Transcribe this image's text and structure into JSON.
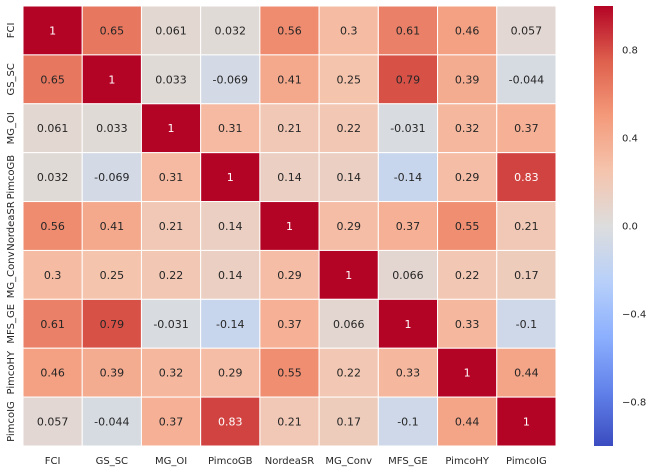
{
  "chart_data": {
    "type": "heatmap",
    "title": "",
    "xlabel": "",
    "ylabel": "",
    "x_labels": [
      "FCI",
      "GS_SC",
      "MG_OI",
      "PimcoGB",
      "NordeaSR",
      "MG_Conv",
      "MFS_GE",
      "PimcoHY",
      "PimcoIG"
    ],
    "y_labels": [
      "FCI",
      "GS_SC",
      "MG_OI",
      "PimcoGB",
      "NordeaSR",
      "MG_Conv",
      "MFS_GE",
      "PimcoHY",
      "PimcoIG"
    ],
    "values": [
      [
        1,
        0.65,
        0.061,
        0.032,
        0.56,
        0.3,
        0.61,
        0.46,
        0.057
      ],
      [
        0.65,
        1,
        0.033,
        -0.069,
        0.41,
        0.25,
        0.79,
        0.39,
        -0.044
      ],
      [
        0.061,
        0.033,
        1,
        0.31,
        0.21,
        0.22,
        -0.031,
        0.32,
        0.37
      ],
      [
        0.032,
        -0.069,
        0.31,
        1,
        0.14,
        0.14,
        -0.14,
        0.29,
        0.83
      ],
      [
        0.56,
        0.41,
        0.21,
        0.14,
        1,
        0.29,
        0.37,
        0.55,
        0.21
      ],
      [
        0.3,
        0.25,
        0.22,
        0.14,
        0.29,
        1,
        0.066,
        0.22,
        0.17
      ],
      [
        0.61,
        0.79,
        -0.031,
        -0.14,
        0.37,
        0.066,
        1,
        0.33,
        -0.1
      ],
      [
        0.46,
        0.39,
        0.32,
        0.29,
        0.55,
        0.22,
        0.33,
        1,
        0.44
      ],
      [
        0.057,
        -0.044,
        0.37,
        0.83,
        0.21,
        0.17,
        -0.1,
        0.44,
        1
      ]
    ],
    "annotations": [
      [
        "1",
        "0.65",
        "0.061",
        "0.032",
        "0.56",
        "0.3",
        "0.61",
        "0.46",
        "0.057"
      ],
      [
        "0.65",
        "1",
        "0.033",
        "-0.069",
        "0.41",
        "0.25",
        "0.79",
        "0.39",
        "-0.044"
      ],
      [
        "0.061",
        "0.033",
        "1",
        "0.31",
        "0.21",
        "0.22",
        "-0.031",
        "0.32",
        "0.37"
      ],
      [
        "0.032",
        "-0.069",
        "0.31",
        "1",
        "0.14",
        "0.14",
        "-0.14",
        "0.29",
        "0.83"
      ],
      [
        "0.56",
        "0.41",
        "0.21",
        "0.14",
        "1",
        "0.29",
        "0.37",
        "0.55",
        "0.21"
      ],
      [
        "0.3",
        "0.25",
        "0.22",
        "0.14",
        "0.29",
        "1",
        "0.066",
        "0.22",
        "0.17"
      ],
      [
        "0.61",
        "0.79",
        "-0.031",
        "-0.14",
        "0.37",
        "0.066",
        "1",
        "0.33",
        "-0.1"
      ],
      [
        "0.46",
        "0.39",
        "0.32",
        "0.29",
        "0.55",
        "0.22",
        "0.33",
        "1",
        "0.44"
      ],
      [
        "0.057",
        "-0.044",
        "0.37",
        "0.83",
        "0.21",
        "0.17",
        "-0.1",
        "0.44",
        "1"
      ]
    ],
    "colormap": "coolwarm",
    "vmin": -1,
    "vmax": 1,
    "colorbar_ticks": [
      0.8,
      0.4,
      0.0,
      -0.4,
      -0.8
    ],
    "colorbar_tick_labels": [
      "0.8",
      "0.4",
      "0.0",
      "−0.4",
      "−0.8"
    ],
    "grid": false,
    "cell_border_color": "#ffffff",
    "text_color_light": "#ffffff",
    "text_color_dark": "#262626"
  }
}
